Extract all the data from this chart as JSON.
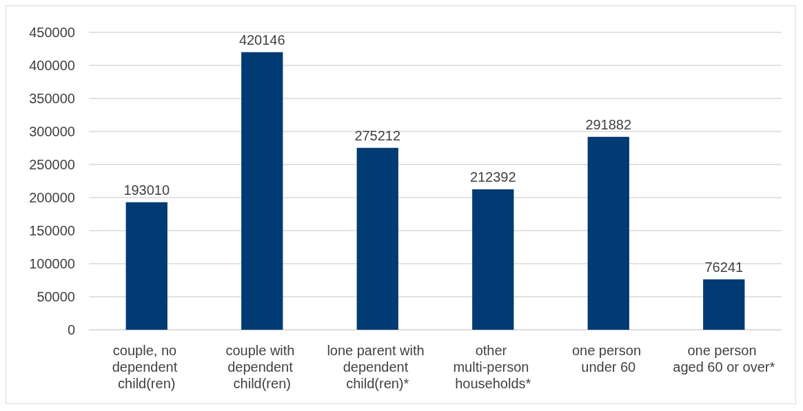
{
  "chart_data": {
    "type": "bar",
    "categories": [
      "couple, no dependent child(ren)",
      "couple with dependent child(ren)",
      "lone parent with dependent child(ren)*",
      "other multi-person households*",
      "one person under 60",
      "one person aged 60 or over*"
    ],
    "values": [
      193010,
      420146,
      275212,
      212392,
      291882,
      76241
    ],
    "color": "#003b73",
    "ylim": [
      0,
      450000
    ],
    "yticks": [
      0,
      50000,
      100000,
      150000,
      200000,
      250000,
      300000,
      350000,
      400000,
      450000
    ],
    "grid": "y",
    "data_labels": true
  }
}
